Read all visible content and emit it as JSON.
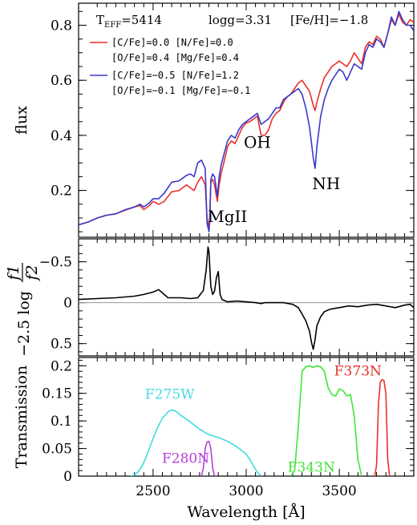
{
  "chart_data": [
    {
      "type": "line",
      "panel": "spectrum",
      "ylabel": "flux",
      "xlim": [
        2100,
        3900
      ],
      "ylim": [
        0.03,
        0.88
      ],
      "yticks": [
        0.2,
        0.4,
        0.6,
        0.8
      ],
      "ytick_labels": [
        "0.2",
        "0.4",
        "0.6",
        "0.8"
      ],
      "header": {
        "teff_label": "T",
        "teff_sub": "EFF",
        "teff_value": "=5414",
        "logg": "logg=3.31",
        "feh": "[Fe/H]=−1.8"
      },
      "legend": [
        {
          "line1": "[C/Fe]=0.0 [N/Fe]=0.0",
          "line2": "[O/Fe]=0.4 [Mg/Fe]=0.4",
          "color": "#e8302a"
        },
        {
          "line1": "[C/Fe]=−0.5 [N/Fe]=1.2",
          "line2": "[O/Fe]=−0.1 [Mg/Fe]=−0.1",
          "color": "#3a3acb"
        }
      ],
      "annotations": [
        {
          "text": "OH",
          "x": 3060,
          "y": 0.355
        },
        {
          "text": "NH",
          "x": 3430,
          "y": 0.205
        },
        {
          "text": "MgII",
          "x": 2900,
          "y": 0.085
        }
      ],
      "series": [
        {
          "color": "#e8302a",
          "x": [
            2100,
            2150,
            2200,
            2250,
            2300,
            2350,
            2400,
            2430,
            2450,
            2480,
            2500,
            2530,
            2560,
            2600,
            2640,
            2680,
            2700,
            2720,
            2740,
            2760,
            2780,
            2790,
            2800,
            2805,
            2810,
            2820,
            2830,
            2845,
            2855,
            2865,
            2880,
            2900,
            2920,
            2940,
            2960,
            2980,
            3000,
            3020,
            3040,
            3060,
            3080,
            3100,
            3120,
            3140,
            3160,
            3180,
            3200,
            3220,
            3240,
            3260,
            3280,
            3300,
            3320,
            3340,
            3360,
            3370,
            3380,
            3400,
            3420,
            3440,
            3460,
            3480,
            3500,
            3520,
            3540,
            3560,
            3580,
            3600,
            3620,
            3640,
            3660,
            3680,
            3700,
            3720,
            3740,
            3760,
            3780,
            3800,
            3820,
            3840,
            3860,
            3880,
            3900
          ],
          "y": [
            0.075,
            0.085,
            0.1,
            0.11,
            0.115,
            0.128,
            0.14,
            0.145,
            0.13,
            0.145,
            0.16,
            0.15,
            0.16,
            0.195,
            0.2,
            0.22,
            0.21,
            0.2,
            0.23,
            0.25,
            0.22,
            0.1,
            0.06,
            0.12,
            0.23,
            0.24,
            0.22,
            0.16,
            0.22,
            0.26,
            0.3,
            0.36,
            0.38,
            0.37,
            0.4,
            0.43,
            0.445,
            0.45,
            0.46,
            0.47,
            0.4,
            0.4,
            0.42,
            0.46,
            0.48,
            0.49,
            0.52,
            0.54,
            0.55,
            0.57,
            0.59,
            0.6,
            0.58,
            0.56,
            0.51,
            0.49,
            0.52,
            0.57,
            0.61,
            0.63,
            0.65,
            0.66,
            0.67,
            0.66,
            0.65,
            0.67,
            0.7,
            0.68,
            0.66,
            0.72,
            0.74,
            0.73,
            0.76,
            0.75,
            0.72,
            0.77,
            0.82,
            0.8,
            0.84,
            0.81,
            0.8,
            0.82,
            0.81
          ]
        },
        {
          "color": "#3a3acb",
          "x": [
            2100,
            2150,
            2200,
            2250,
            2300,
            2350,
            2400,
            2430,
            2450,
            2480,
            2500,
            2530,
            2560,
            2600,
            2640,
            2680,
            2700,
            2720,
            2740,
            2760,
            2780,
            2790,
            2800,
            2805,
            2810,
            2820,
            2830,
            2845,
            2855,
            2865,
            2880,
            2900,
            2920,
            2940,
            2960,
            2980,
            3000,
            3020,
            3040,
            3060,
            3080,
            3100,
            3120,
            3140,
            3160,
            3180,
            3200,
            3220,
            3240,
            3260,
            3280,
            3300,
            3320,
            3340,
            3360,
            3370,
            3380,
            3400,
            3420,
            3440,
            3460,
            3480,
            3500,
            3520,
            3540,
            3560,
            3580,
            3600,
            3620,
            3640,
            3660,
            3680,
            3700,
            3720,
            3740,
            3760,
            3780,
            3800,
            3820,
            3840,
            3860,
            3880,
            3900
          ],
          "y": [
            0.075,
            0.085,
            0.1,
            0.11,
            0.115,
            0.13,
            0.14,
            0.15,
            0.14,
            0.155,
            0.17,
            0.17,
            0.19,
            0.23,
            0.235,
            0.255,
            0.26,
            0.25,
            0.3,
            0.31,
            0.28,
            0.08,
            0.05,
            0.1,
            0.24,
            0.26,
            0.25,
            0.18,
            0.25,
            0.29,
            0.33,
            0.38,
            0.4,
            0.39,
            0.42,
            0.44,
            0.45,
            0.46,
            0.47,
            0.48,
            0.44,
            0.45,
            0.46,
            0.48,
            0.5,
            0.5,
            0.53,
            0.54,
            0.55,
            0.56,
            0.57,
            0.55,
            0.5,
            0.43,
            0.32,
            0.28,
            0.36,
            0.47,
            0.53,
            0.57,
            0.6,
            0.62,
            0.64,
            0.63,
            0.6,
            0.63,
            0.66,
            0.65,
            0.64,
            0.7,
            0.73,
            0.72,
            0.75,
            0.74,
            0.72,
            0.77,
            0.83,
            0.8,
            0.85,
            0.82,
            0.8,
            0.8,
            0.78
          ]
        }
      ]
    },
    {
      "type": "line",
      "panel": "ratio",
      "ylabel_prefix": "−2.5 log",
      "ylabel_num": "f1",
      "ylabel_den": "f2",
      "xlim": [
        2100,
        3900
      ],
      "ylim": [
        0.65,
        -0.78
      ],
      "yticks": [
        -0.5,
        0,
        0.5
      ],
      "ytick_labels": [
        "−0.5",
        "0",
        "0.5"
      ],
      "reference_line": 0,
      "series": [
        {
          "color": "#000000",
          "x": [
            2100,
            2200,
            2300,
            2400,
            2450,
            2500,
            2530,
            2560,
            2580,
            2600,
            2650,
            2700,
            2740,
            2770,
            2785,
            2795,
            2800,
            2810,
            2820,
            2830,
            2840,
            2850,
            2860,
            2870,
            2900,
            2950,
            3000,
            3050,
            3080,
            3100,
            3150,
            3200,
            3250,
            3280,
            3300,
            3320,
            3340,
            3350,
            3360,
            3370,
            3380,
            3400,
            3420,
            3450,
            3500,
            3550,
            3600,
            3650,
            3700,
            3750,
            3800,
            3850,
            3880,
            3900
          ],
          "y": [
            -0.04,
            -0.05,
            -0.06,
            -0.08,
            -0.1,
            -0.13,
            -0.16,
            -0.1,
            -0.06,
            -0.06,
            -0.06,
            -0.05,
            -0.06,
            -0.15,
            -0.4,
            -0.68,
            -0.62,
            -0.2,
            -0.1,
            -0.14,
            -0.3,
            -0.38,
            -0.1,
            -0.04,
            -0.01,
            -0.02,
            -0.01,
            0.0,
            0.01,
            0.0,
            0.0,
            0.0,
            0.02,
            0.06,
            0.14,
            0.22,
            0.35,
            0.48,
            0.57,
            0.45,
            0.28,
            0.17,
            0.11,
            0.08,
            0.06,
            0.04,
            0.05,
            0.03,
            0.02,
            0.04,
            0.06,
            0.03,
            0.02,
            0.06
          ]
        }
      ]
    },
    {
      "type": "line",
      "panel": "transmission",
      "xlabel": "Wavelength [Å]",
      "ylabel": "Transmission",
      "xlim": [
        2100,
        3900
      ],
      "ylim": [
        0,
        0.215
      ],
      "xticks": [
        2500,
        3000,
        3500
      ],
      "xtick_labels": [
        "2500",
        "3000",
        "3500"
      ],
      "yticks": [
        0,
        0.05,
        0.1,
        0.15,
        0.2
      ],
      "ytick_labels": [
        "0",
        "0.05",
        "0.1",
        "0.15",
        "0.2"
      ],
      "filters": [
        {
          "name": "F275W",
          "color": "#44dbe0",
          "label_x": 2590,
          "label_y": 0.14,
          "x": [
            2380,
            2400,
            2420,
            2440,
            2460,
            2480,
            2500,
            2520,
            2550,
            2580,
            2600,
            2620,
            2650,
            2700,
            2750,
            2800,
            2850,
            2900,
            2950,
            3000,
            3020,
            3040,
            3060,
            3080
          ],
          "y": [
            0,
            0.002,
            0.008,
            0.018,
            0.032,
            0.05,
            0.068,
            0.085,
            0.105,
            0.116,
            0.12,
            0.118,
            0.11,
            0.098,
            0.085,
            0.075,
            0.07,
            0.063,
            0.053,
            0.04,
            0.03,
            0.018,
            0.007,
            0
          ]
        },
        {
          "name": "F280N",
          "color": "#b640d6",
          "label_x": 2675,
          "label_y": 0.024,
          "x": [
            2760,
            2770,
            2780,
            2790,
            2800,
            2810,
            2820,
            2830
          ],
          "y": [
            0,
            0.015,
            0.05,
            0.062,
            0.063,
            0.05,
            0.015,
            0
          ]
        },
        {
          "name": "F343N",
          "color": "#3fe535",
          "label_x": 3350,
          "label_y": 0.008,
          "x": [
            3240,
            3260,
            3280,
            3300,
            3320,
            3340,
            3360,
            3380,
            3400,
            3420,
            3440,
            3460,
            3480,
            3500,
            3520,
            3540,
            3560,
            3580,
            3600,
            3620
          ],
          "y": [
            0,
            0.01,
            0.09,
            0.19,
            0.198,
            0.2,
            0.197,
            0.2,
            0.198,
            0.19,
            0.16,
            0.148,
            0.145,
            0.158,
            0.155,
            0.145,
            0.148,
            0.11,
            0.03,
            0
          ]
        },
        {
          "name": "F373N",
          "color": "#e8302a",
          "label_x": 3600,
          "label_y": 0.182,
          "x": [
            3690,
            3700,
            3710,
            3720,
            3730,
            3740,
            3750,
            3760,
            3770
          ],
          "y": [
            0,
            0.02,
            0.13,
            0.17,
            0.175,
            0.173,
            0.15,
            0.03,
            0
          ]
        }
      ]
    }
  ]
}
